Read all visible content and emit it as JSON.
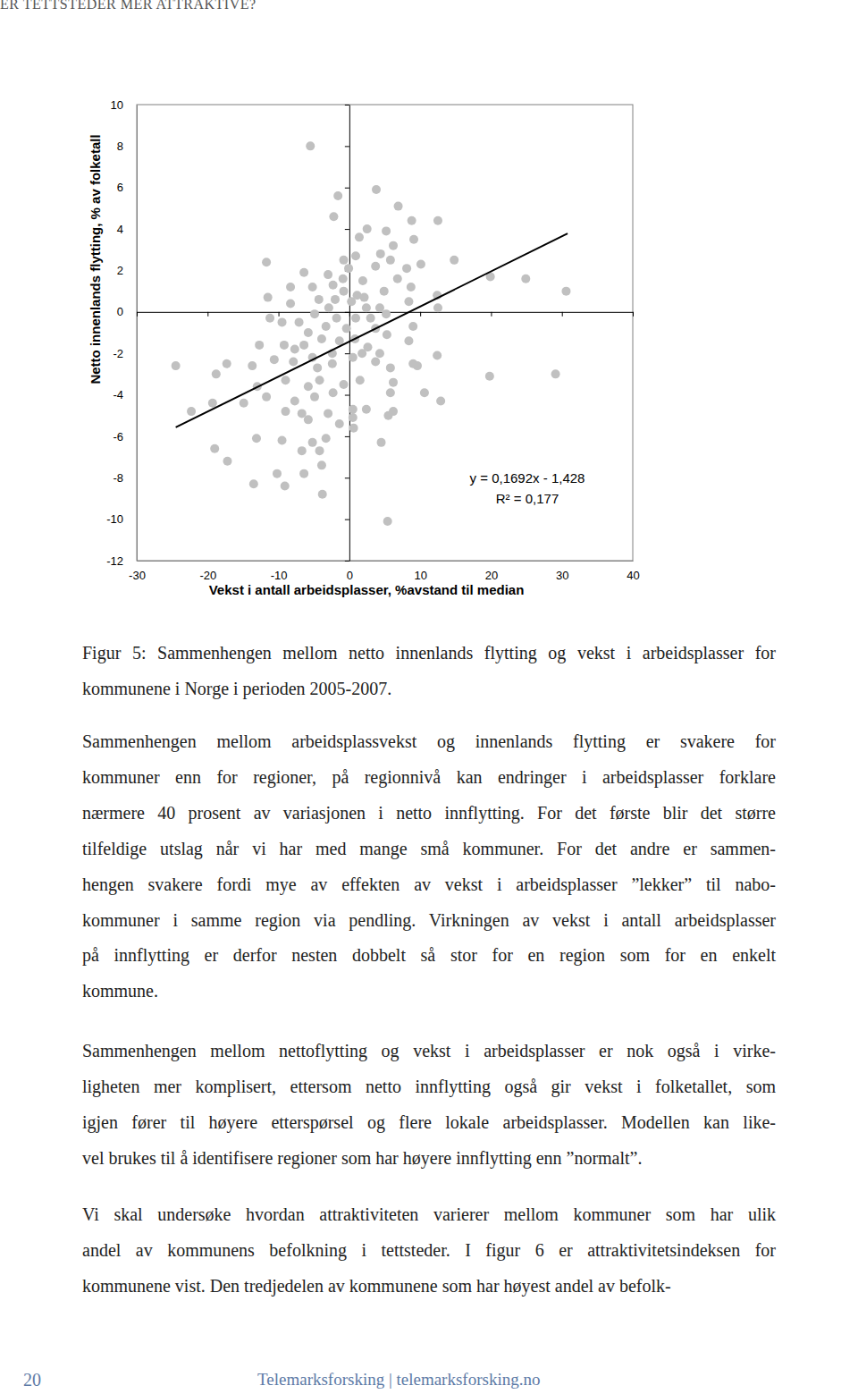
{
  "header": "ER TETTSTEDER MER ATTRAKTIVE?",
  "chart_data": {
    "type": "scatter",
    "x_label": "Vekst i antall arbeidsplasser, %avstand til median",
    "y_label": "Netto innenlands flytting, % av folketall",
    "xlim": [
      -30,
      40
    ],
    "ylim": [
      -12,
      10
    ],
    "xticks": [
      -30,
      -20,
      -10,
      0,
      10,
      20,
      30,
      40
    ],
    "yticks": [
      -12,
      -10,
      -8,
      -6,
      -4,
      -2,
      0,
      2,
      4,
      6,
      8,
      10
    ],
    "annotations": [
      "y = 0,1692x - 1,428",
      "R² = 0,177"
    ],
    "series": [
      {
        "type": "scatter",
        "marker": "circle",
        "color": "#c0c0c0",
        "x": [
          -5.5,
          -1.6,
          3.8,
          -2.2,
          6.9,
          12.5,
          8.8,
          2.5,
          5.2,
          1.4,
          9.1,
          -11.7,
          -0.1,
          0.9,
          3.7,
          5.8,
          10.1,
          14.8,
          19.9,
          24.9,
          30.6,
          -8.3,
          -5.2,
          -2.3,
          -0.9,
          1.9,
          4.9,
          6.8,
          8.7,
          12.4,
          -11.5,
          -8.3,
          -4.3,
          -2.9,
          0.3,
          2.1,
          4.3,
          8.4,
          12.5,
          -11.2,
          -9.5,
          -7.1,
          -4.9,
          -1.8,
          0.9,
          3.0,
          5.2,
          9.0,
          -12.7,
          -9.2,
          -6.4,
          -3.9,
          -1.4,
          0.8,
          2.6,
          5.3,
          8.4,
          -17.3,
          -24.5,
          -13.7,
          -10.6,
          -7.9,
          -5.2,
          -2.4,
          0.5,
          3.7,
          9.0,
          12.4,
          19.8,
          29.1,
          -18.8,
          -13.0,
          -9.0,
          -5.8,
          -4.2,
          -0.8,
          1.5,
          6.2,
          -14.9,
          -19.3,
          -11.7,
          -7.7,
          -4.9,
          -2.3,
          0.5,
          2.4,
          5.8,
          12.9,
          -22.3,
          -9.0,
          -6.7,
          -3.0,
          5.5,
          -19.0,
          -13.1,
          -9.5,
          -5.2,
          0.5,
          -1.4,
          4.5,
          -6.7,
          -4.2,
          -17.2,
          -3.9,
          -10.2,
          -6.4,
          -13.5,
          -9.1,
          -3.8,
          5.4,
          -3.3,
          -5.8,
          0.6,
          -0.8,
          1.1,
          2.4,
          -2.0,
          -3.3,
          -0.4,
          3.7,
          -5.8,
          -7.7,
          1.8,
          -2.4,
          4.3,
          -4.5,
          5.8,
          6.2,
          10.6,
          9.6,
          8.1,
          6.2,
          4.4,
          -0.8,
          -3.0,
          -6.4
        ],
        "values": [
          8.0,
          5.6,
          5.9,
          4.6,
          5.1,
          4.4,
          4.4,
          4.0,
          3.9,
          3.6,
          3.5,
          2.4,
          2.1,
          2.7,
          2.2,
          2.5,
          2.3,
          2.5,
          1.7,
          1.6,
          1.0,
          1.2,
          1.2,
          1.3,
          1.6,
          1.5,
          1.0,
          1.6,
          1.2,
          0.8,
          0.7,
          0.4,
          0.6,
          0.2,
          0.5,
          0.7,
          0.2,
          0.5,
          0.2,
          -0.3,
          -0.5,
          -0.5,
          -0.1,
          -0.3,
          -0.3,
          -0.3,
          -0.1,
          -0.7,
          -1.6,
          -1.6,
          -1.6,
          -1.3,
          -1.4,
          -1.3,
          -1.7,
          -1.1,
          -1.4,
          -2.5,
          -2.6,
          -2.6,
          -2.3,
          -2.4,
          -2.2,
          -2.5,
          -2.2,
          -2.4,
          -2.5,
          -2.1,
          -3.1,
          -3.0,
          -3.0,
          -3.6,
          -3.3,
          -3.6,
          -3.3,
          -3.5,
          -3.3,
          -3.4,
          -4.4,
          -4.4,
          -4.1,
          -4.3,
          -4.1,
          -3.9,
          -4.7,
          -4.7,
          -3.9,
          -4.3,
          -4.8,
          -4.8,
          -4.9,
          -4.9,
          -5.0,
          -6.6,
          -6.1,
          -6.2,
          -6.3,
          -5.1,
          -5.4,
          -6.3,
          -6.7,
          -6.7,
          -7.2,
          -7.4,
          -7.8,
          -7.8,
          -8.3,
          -8.4,
          -8.8,
          -10.1,
          -6.1,
          -5.2,
          -5.6,
          1.0,
          0.8,
          0.2,
          0.6,
          -0.7,
          -0.8,
          -0.8,
          -1.0,
          -1.8,
          -2.0,
          -2.0,
          -2.0,
          -2.7,
          -2.7,
          -4.8,
          -3.9,
          -2.6,
          2.1,
          3.2,
          2.8,
          2.5,
          1.8,
          1.9
        ]
      },
      {
        "type": "line",
        "line_style": "solid",
        "color": "#000000",
        "x": [
          -24.5,
          30.8
        ],
        "values": [
          -5.57,
          3.78
        ]
      }
    ]
  },
  "caption": [
    "Figur 5: Sammenhengen mellom netto innenlands flytting og vekst i arbeidsplasser for",
    "kommunene i Norge i perioden 2005-2007."
  ],
  "paragraphs": [
    [
      "Sammenhengen mellom arbeidsplassvekst og innenlands flytting er svakere for",
      "kommuner enn for regioner, på regionnivå kan endringer i arbeidsplasser forklare",
      "nærmere 40 prosent av variasjonen i netto innflytting. For det første blir det større",
      "tilfeldige utslag når vi har med mange små kommuner. For det andre er sammen-",
      "hengen svakere fordi mye av effekten av vekst i arbeidsplasser ”lekker” til nabo-",
      "kommuner i samme region via pendling. Virkningen av vekst i antall arbeidsplasser",
      "på innflytting er derfor nesten dobbelt så stor for en region som for en enkelt",
      "kommune."
    ],
    [
      "Sammenhengen mellom nettoflytting og vekst i arbeidsplasser er nok også i virke-",
      "ligheten mer komplisert, ettersom netto innflytting også gir vekst i folketallet, som",
      "igjen fører til høyere etterspørsel og flere lokale arbeidsplasser. Modellen kan like-",
      "vel brukes til å identifisere regioner som har høyere innflytting enn ”normalt”."
    ],
    [
      "Vi skal undersøke hvordan attraktiviteten varierer mellom kommuner som har ulik",
      "andel av kommunens befolkning i tettsteder. I figur 6 er attraktivitetsindeksen for",
      "kommunene vist. Den tredjedelen av kommunene som har høyest andel av befolk-"
    ]
  ],
  "footer": {
    "page": 20,
    "text": "Telemarksforsking | telemarksforsking.no"
  }
}
